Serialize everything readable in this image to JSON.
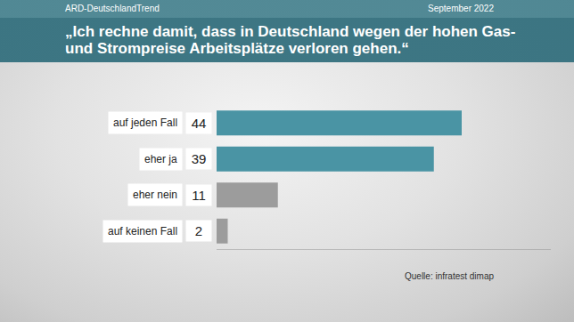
{
  "chart_data": {
    "type": "bar",
    "orientation": "horizontal",
    "title": "„Ich rechne damit, dass in Deutschland wegen der hohen Gas- und Strompreise Arbeitsplätze verloren gehen.“",
    "annotations": [
      "ARD-DeutschlandTrend",
      "September 2022",
      "Quelle: infratest dimap"
    ],
    "categories": [
      "auf jeden Fall",
      "eher ja",
      "eher nein",
      "auf keinen Fall"
    ],
    "values": [
      44,
      39,
      11,
      2
    ],
    "colors": [
      "#4a94a4",
      "#4a94a4",
      "#9c9c9c",
      "#9c9c9c"
    ],
    "xlim": [
      0,
      60
    ],
    "data_labels": true,
    "tick_labels": false,
    "grid": false
  }
}
